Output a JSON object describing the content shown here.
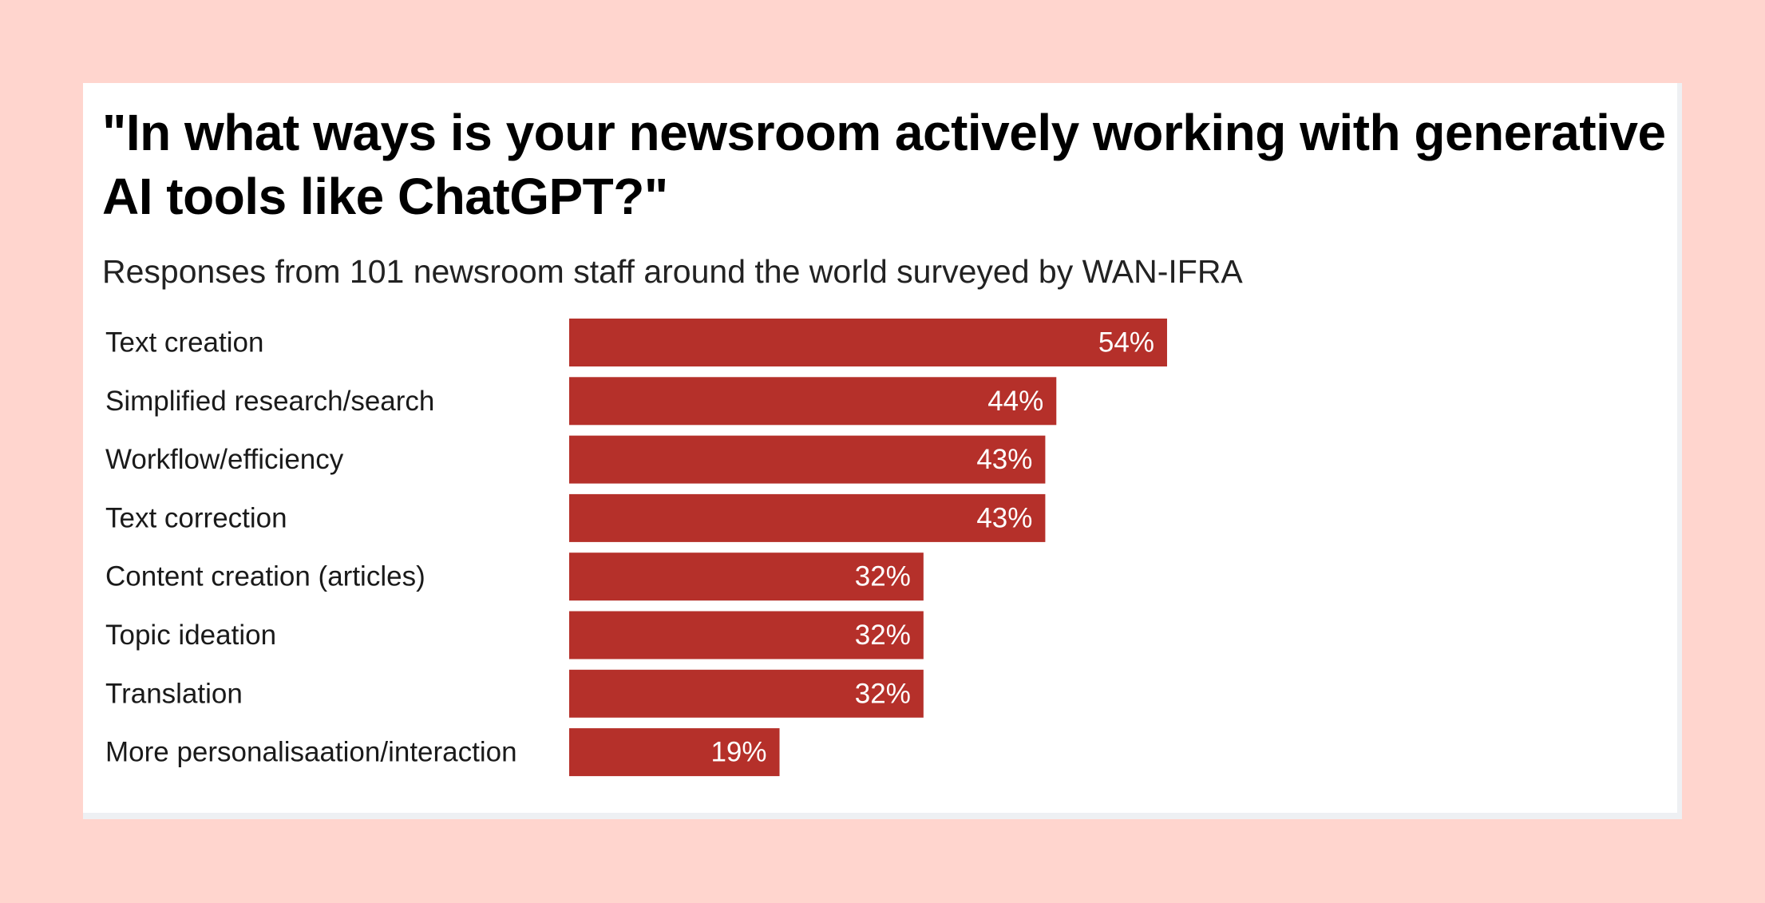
{
  "colors": {
    "background": "#ffd5ce",
    "card": "#ffffff",
    "bar": "#b5302a",
    "value_text": "#ffffff"
  },
  "chart_data": {
    "type": "bar",
    "orientation": "horizontal",
    "title": "\"In what ways is your newsroom actively working with generative AI tools like ChatGPT?\"",
    "subtitle": "Responses from 101 newsroom staff around the world surveyed by WAN-IFRA",
    "categories": [
      "Text creation",
      "Simplified research/search",
      "Workflow/efficiency",
      "Text correction",
      "Content creation (articles)",
      "Topic ideation",
      "Translation",
      "More personalisaation/interaction"
    ],
    "values": [
      54,
      44,
      43,
      43,
      32,
      32,
      32,
      19
    ],
    "value_labels": [
      "54%",
      "44%",
      "43%",
      "43%",
      "32%",
      "32%",
      "32%",
      "19%"
    ],
    "unit": "%",
    "xlim": [
      0,
      100
    ],
    "grid": false,
    "legend": "none"
  }
}
